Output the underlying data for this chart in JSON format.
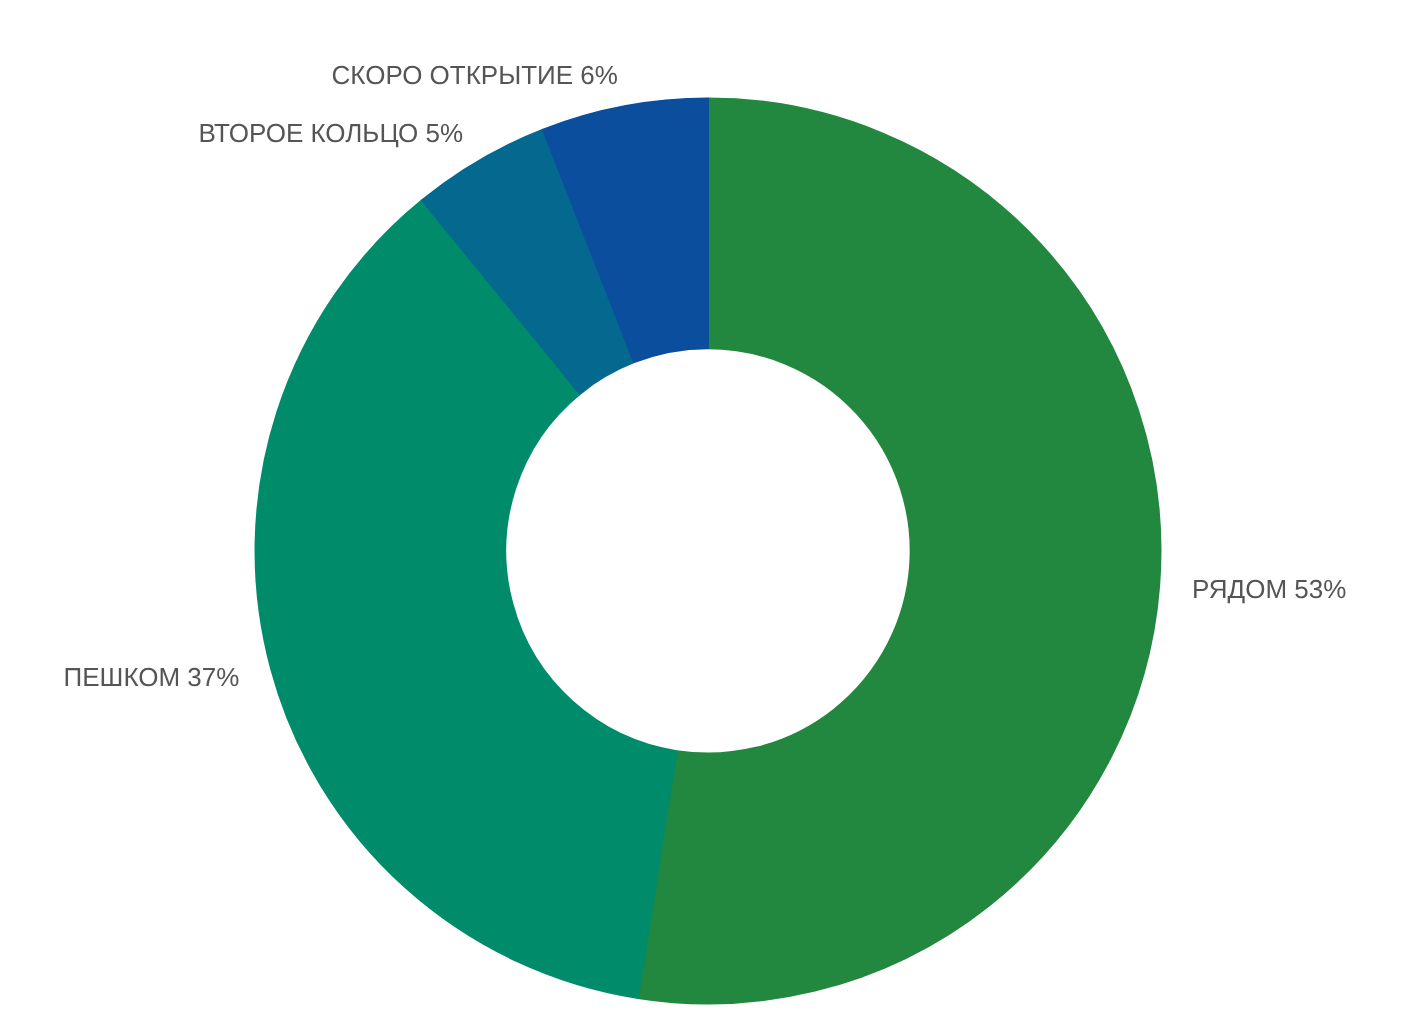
{
  "chart_data": {
    "type": "donut",
    "categories": [
      "РЯДОМ",
      "ПЕШКОМ",
      "ВТОРОЕ КОЛЬЦО",
      "СКОРО ОТКРЫТИЕ"
    ],
    "values": [
      53,
      37,
      5,
      6
    ],
    "value_labels": [
      "53%",
      "37%",
      "5%",
      "6%"
    ],
    "colors": [
      "#22883f",
      "#008c6b",
      "#05698f",
      "#0b4e9e"
    ]
  }
}
